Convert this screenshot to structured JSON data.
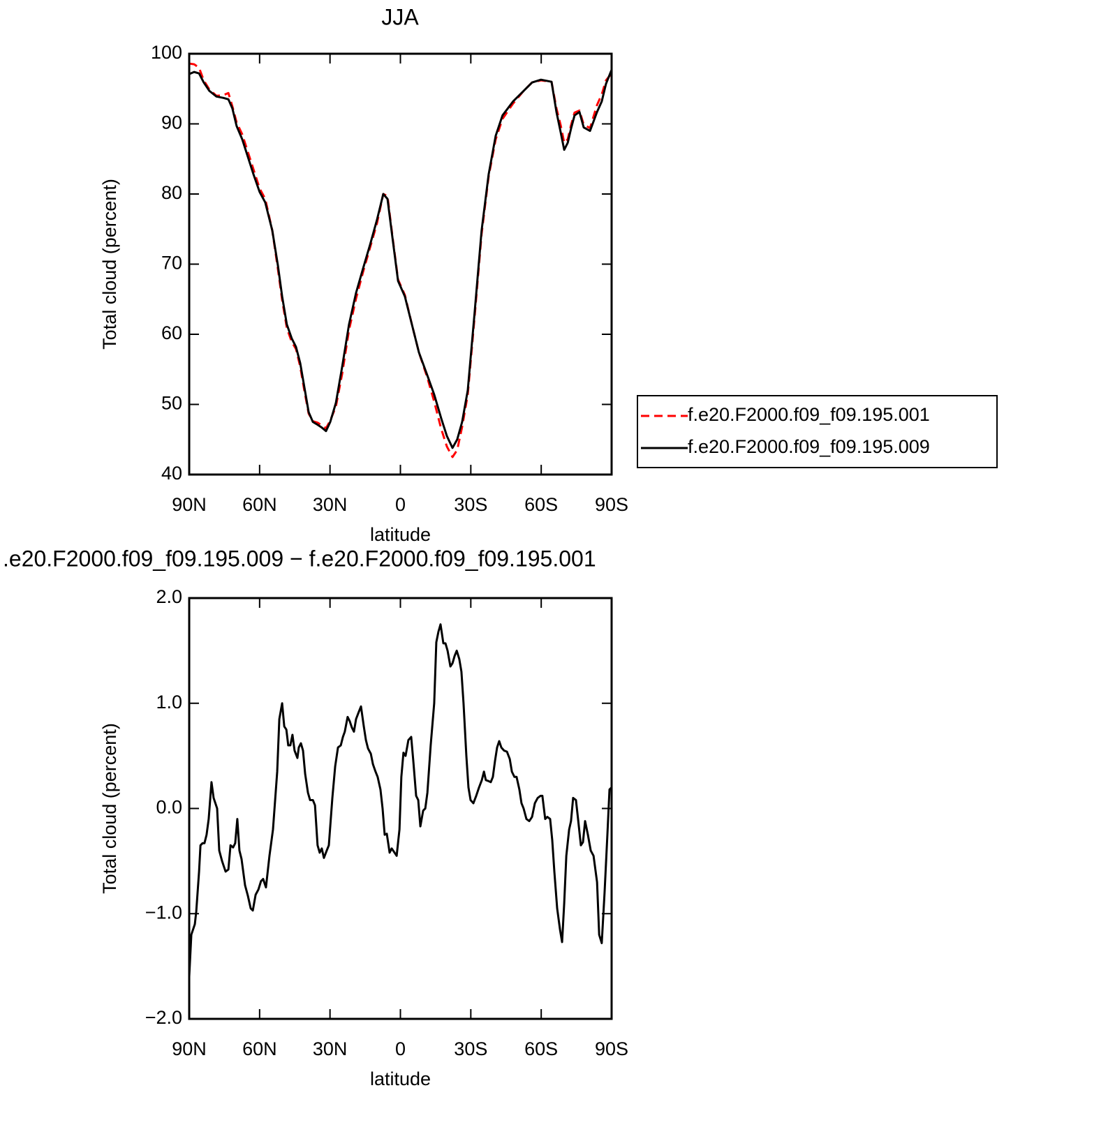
{
  "chart_data": [
    {
      "type": "line",
      "title": "JJA",
      "xlabel": "latitude",
      "ylabel": "Total cloud (percent)",
      "xlim": [
        90,
        -90
      ],
      "ylim": [
        40,
        100
      ],
      "xticks": [
        {
          "value": 90,
          "label": "90N"
        },
        {
          "value": 60,
          "label": "60N"
        },
        {
          "value": 30,
          "label": "30N"
        },
        0,
        {
          "value": -30,
          "label": "30S"
        },
        {
          "value": -60,
          "label": "60S"
        },
        {
          "value": -90,
          "label": "90S"
        }
      ],
      "yticks": [
        40,
        50,
        60,
        70,
        80,
        90,
        100
      ],
      "legend": "right",
      "x": [
        90,
        87.9,
        85.8,
        83.8,
        81.4,
        78.4,
        75.4,
        73.3,
        71.6,
        69.8,
        67.4,
        65.0,
        62.6,
        60.0,
        57.6,
        54.6,
        52.2,
        50.4,
        48.4,
        46.3,
        44.5,
        42.7,
        40.9,
        39.1,
        37.3,
        35.3,
        33.5,
        31.7,
        29.9,
        27.5,
        24.8,
        21.9,
        18.9,
        15.9,
        12.9,
        10.0,
        7.3,
        5.5,
        3.4,
        1.0,
        -1.9,
        -4.9,
        -7.9,
        -11.4,
        -14.4,
        -17.4,
        -19.8,
        -22.2,
        -24.2,
        -26.3,
        -28.7,
        -31.6,
        -34.6,
        -37.6,
        -40.6,
        -43.5,
        -48.0,
        -52.5,
        -56.1,
        -59.9,
        -64.4,
        -66.5,
        -68.3,
        -69.8,
        -71.3,
        -72.7,
        -74.2,
        -76.3,
        -78.1,
        -80.8,
        -83.8,
        -85.8,
        -87.6,
        -90
      ],
      "series": [
        {
          "name": "f.e20.F2000.f09_f09.195.001",
          "color": "#ff0000",
          "dash": "dashed",
          "values": [
            98.6,
            98.5,
            98.0,
            96.2,
            94.9,
            94.0,
            94.1,
            94.4,
            92.5,
            90.2,
            88.5,
            86.0,
            83.5,
            80.8,
            79.3,
            74.8,
            69.3,
            64.9,
            60.9,
            58.9,
            57.9,
            55.4,
            51.9,
            48.7,
            47.6,
            47.4,
            47.0,
            46.6,
            47.7,
            49.7,
            54.4,
            60.6,
            65.1,
            68.9,
            72.4,
            75.8,
            80.0,
            79.7,
            74.0,
            67.8,
            65.6,
            61.4,
            57.4,
            53.9,
            50.4,
            46.5,
            44.0,
            42.5,
            43.5,
            46.8,
            51.4,
            62.4,
            74.3,
            82.5,
            87.8,
            90.7,
            92.9,
            94.7,
            95.9,
            96.2,
            96.0,
            92.2,
            89.8,
            87.3,
            87.8,
            89.8,
            91.6,
            91.9,
            89.9,
            89.4,
            92.7,
            94.2,
            96.2,
            97.2
          ]
        },
        {
          "name": "f.e20.F2000.f09_f09.195.009",
          "color": "#000000",
          "dash": "solid",
          "values": [
            97.1,
            97.4,
            97.2,
            95.9,
            94.7,
            93.9,
            93.7,
            93.5,
            92.2,
            89.7,
            87.8,
            85.3,
            82.8,
            80.3,
            78.8,
            74.8,
            69.8,
            65.4,
            61.4,
            59.4,
            58.2,
            55.9,
            52.4,
            48.9,
            47.5,
            47.1,
            46.7,
            46.2,
            47.5,
            50.2,
            55.4,
            61.4,
            65.9,
            69.4,
            72.8,
            76.3,
            80.0,
            79.3,
            73.8,
            67.6,
            65.4,
            61.4,
            57.4,
            54.2,
            51.4,
            48.0,
            45.5,
            43.8,
            45.0,
            47.5,
            52.0,
            63.0,
            74.8,
            82.8,
            88.3,
            91.2,
            93.2,
            94.7,
            95.9,
            96.3,
            96.0,
            91.7,
            88.8,
            86.3,
            87.3,
            89.3,
            91.2,
            91.7,
            89.5,
            89.0,
            91.7,
            93.2,
            95.7,
            97.7
          ]
        }
      ]
    },
    {
      "type": "line",
      "title": ".e20.F2000.f09_f09.195.009 − f.e20.F2000.f09_f09.195.001",
      "xlabel": "latitude",
      "ylabel": "Total cloud (percent)",
      "xlim": [
        90,
        -90
      ],
      "ylim": [
        -2,
        2
      ],
      "xticks": [
        {
          "value": 90,
          "label": "90N"
        },
        {
          "value": 60,
          "label": "60N"
        },
        {
          "value": 30,
          "label": "30N"
        },
        0,
        {
          "value": -30,
          "label": "30S"
        },
        {
          "value": -60,
          "label": "60S"
        },
        {
          "value": -90,
          "label": "90S"
        }
      ],
      "yticks": [
        {
          "value": -2,
          "label": "−2.0"
        },
        {
          "value": -1,
          "label": "−1.0"
        },
        {
          "value": 0,
          "label": "0.0"
        },
        {
          "value": 1,
          "label": "1.0"
        },
        {
          "value": 2,
          "label": "2.0"
        }
      ],
      "x": [
        90,
        89.1,
        87.6,
        87.0,
        85.8,
        85.2,
        84.3,
        83.5,
        82.6,
        81.7,
        80.5,
        79.6,
        78.1,
        77.2,
        76.0,
        74.5,
        73.3,
        72.4,
        71.3,
        70.4,
        69.5,
        68.6,
        67.7,
        66.2,
        65.0,
        63.8,
        62.9,
        61.7,
        60.5,
        59.4,
        58.5,
        57.3,
        55.8,
        54.3,
        52.5,
        51.6,
        50.4,
        49.5,
        48.6,
        47.8,
        46.9,
        46.0,
        45.1,
        43.9,
        43.3,
        42.4,
        41.5,
        40.6,
        39.4,
        38.5,
        37.3,
        36.4,
        35.3,
        34.4,
        33.5,
        32.6,
        31.4,
        30.5,
        29.0,
        27.8,
        26.6,
        25.4,
        24.5,
        23.7,
        22.5,
        21.6,
        20.7,
        19.8,
        18.9,
        17.7,
        16.8,
        15.6,
        14.7,
        13.8,
        12.6,
        11.7,
        10.6,
        9.7,
        8.5,
        7.6,
        6.7,
        5.8,
        4.6,
        3.7,
        2.8,
        1.6,
        0.4,
        -0.4,
        -1.3,
        -2.2,
        -3.4,
        -4.6,
        -5.5,
        -6.7,
        -7.6,
        -8.5,
        -9.7,
        -10.6,
        -11.5,
        -12.9,
        -14.4,
        -15.3,
        -16.2,
        -17.1,
        -18.3,
        -19.2,
        -20.1,
        -21.3,
        -22.2,
        -23.1,
        -24.0,
        -25.1,
        -26.0,
        -26.9,
        -28.1,
        -29.0,
        -29.9,
        -31.1,
        -32.3,
        -33.5,
        -34.7,
        -35.6,
        -36.4,
        -37.6,
        -38.5,
        -39.4,
        -40.3,
        -41.2,
        -42.1,
        -43.0,
        -44.2,
        -45.4,
        -46.6,
        -47.5,
        -48.6,
        -49.5,
        -50.7,
        -51.6,
        -52.5,
        -53.7,
        -54.9,
        -56.1,
        -57.3,
        -58.5,
        -59.7,
        -60.5,
        -61.7,
        -62.6,
        -63.8,
        -64.7,
        -65.6,
        -66.8,
        -68.0,
        -68.9,
        -69.8,
        -70.7,
        -71.9,
        -72.7,
        -73.6,
        -74.8,
        -75.7,
        -76.9,
        -77.8,
        -78.7,
        -79.9,
        -81.1,
        -82.3,
        -83.8,
        -84.7,
        -85.8,
        -87.0,
        -88.2,
        -89.1,
        -90
      ],
      "series": [
        {
          "color": "#000000",
          "dash": "solid",
          "values": [
            -1.6,
            -1.2,
            -1.1,
            -0.98,
            -0.6,
            -0.35,
            -0.33,
            -0.33,
            -0.25,
            -0.1,
            0.25,
            0.1,
            0.0,
            -0.4,
            -0.5,
            -0.6,
            -0.58,
            -0.35,
            -0.37,
            -0.33,
            -0.1,
            -0.4,
            -0.48,
            -0.73,
            -0.83,
            -0.95,
            -0.97,
            -0.82,
            -0.77,
            -0.69,
            -0.67,
            -0.75,
            -0.45,
            -0.2,
            0.35,
            0.85,
            1.0,
            0.78,
            0.75,
            0.6,
            0.6,
            0.7,
            0.55,
            0.48,
            0.58,
            0.62,
            0.55,
            0.33,
            0.15,
            0.08,
            0.08,
            0.03,
            -0.35,
            -0.42,
            -0.38,
            -0.47,
            -0.4,
            -0.35,
            0.1,
            0.4,
            0.58,
            0.6,
            0.68,
            0.73,
            0.87,
            0.83,
            0.77,
            0.73,
            0.85,
            0.92,
            0.97,
            0.78,
            0.65,
            0.57,
            0.52,
            0.42,
            0.35,
            0.3,
            0.18,
            0.0,
            -0.25,
            -0.24,
            -0.42,
            -0.38,
            -0.41,
            -0.45,
            -0.2,
            0.3,
            0.53,
            0.5,
            0.65,
            0.68,
            0.45,
            0.12,
            0.08,
            -0.17,
            -0.02,
            0.0,
            0.15,
            0.6,
            1.0,
            1.58,
            1.68,
            1.75,
            1.57,
            1.57,
            1.5,
            1.35,
            1.38,
            1.45,
            1.5,
            1.42,
            1.3,
            1.0,
            0.5,
            0.2,
            0.08,
            0.05,
            0.12,
            0.2,
            0.27,
            0.35,
            0.27,
            0.26,
            0.25,
            0.3,
            0.45,
            0.58,
            0.64,
            0.58,
            0.55,
            0.54,
            0.47,
            0.35,
            0.3,
            0.3,
            0.18,
            0.05,
            0.0,
            -0.1,
            -0.12,
            -0.08,
            0.05,
            0.1,
            0.12,
            0.12,
            -0.1,
            -0.08,
            -0.1,
            -0.3,
            -0.6,
            -0.95,
            -1.15,
            -1.27,
            -0.9,
            -0.45,
            -0.2,
            -0.12,
            0.1,
            0.08,
            -0.1,
            -0.35,
            -0.32,
            -0.12,
            -0.25,
            -0.4,
            -0.45,
            -0.7,
            -1.2,
            -1.28,
            -0.8,
            -0.25,
            0.18,
            0.2
          ]
        }
      ]
    }
  ]
}
